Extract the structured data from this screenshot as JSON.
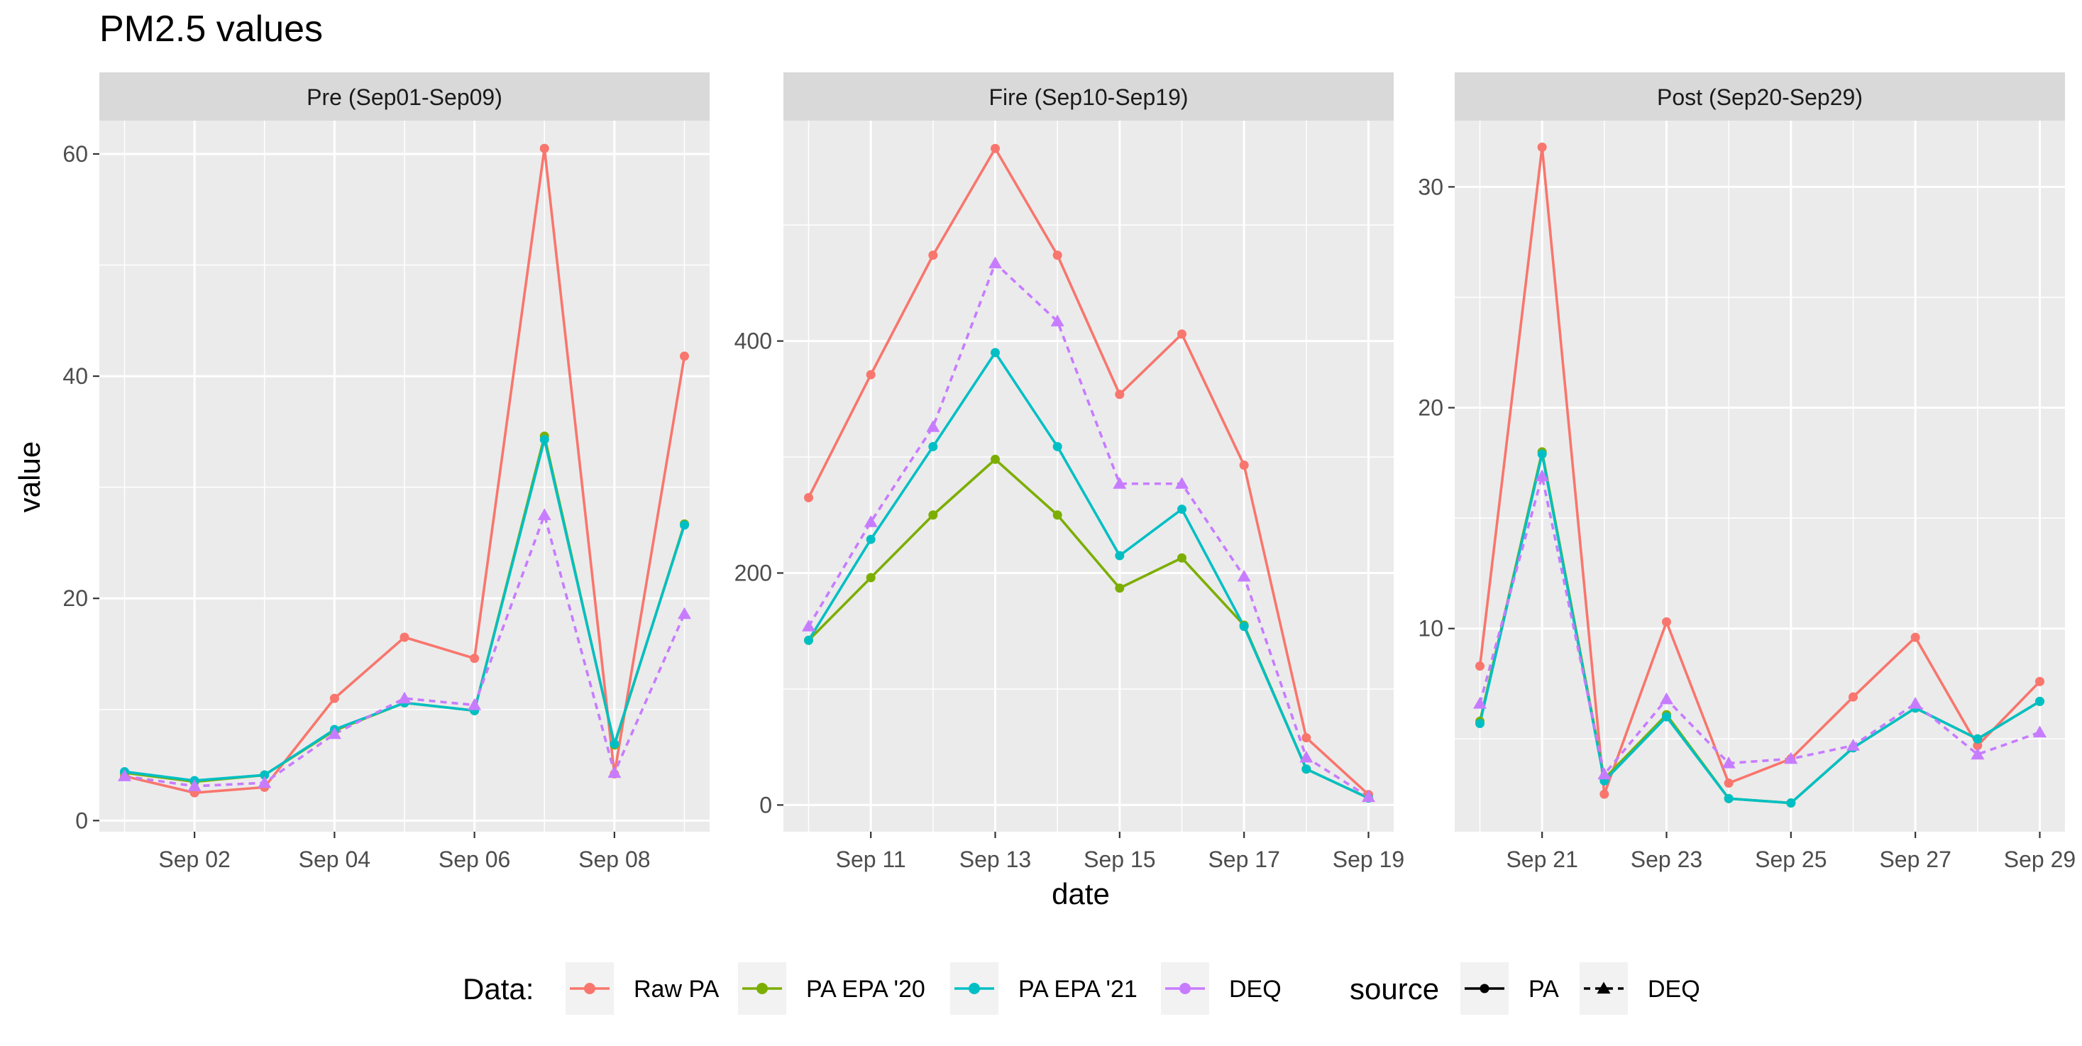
{
  "chart_data": {
    "type": "line",
    "title": "PM2.5 values",
    "xlabel": "date",
    "ylabel": "value",
    "grid": true,
    "legend_position": "bottom",
    "legend": {
      "data_title": "Data:",
      "source_title": "source",
      "data_entries": [
        {
          "label": "Raw PA",
          "color": "#F8766D"
        },
        {
          "label": "PA EPA '20",
          "color": "#7CAE00"
        },
        {
          "label": "PA EPA '21",
          "color": "#00BFC4"
        },
        {
          "label": "DEQ",
          "color": "#C77CFF"
        }
      ],
      "source_entries": [
        {
          "label": "PA",
          "linetype": "solid",
          "shape": "circle"
        },
        {
          "label": "DEQ",
          "linetype": "dashed",
          "shape": "triangle"
        }
      ]
    },
    "panels": [
      {
        "strip": "Pre (Sep01-Sep09)",
        "x_dates": [
          "2020-09-01",
          "2020-09-02",
          "2020-09-03",
          "2020-09-04",
          "2020-09-05",
          "2020-09-06",
          "2020-09-07",
          "2020-09-08",
          "2020-09-09"
        ],
        "x_ticks": [
          "Sep 02",
          "Sep 04",
          "Sep 06",
          "Sep 08"
        ],
        "y_ticks": [
          "0",
          "20",
          "40",
          "60"
        ],
        "ylim": [
          -1,
          63
        ],
        "series": [
          {
            "name": "Raw PA",
            "source": "PA",
            "color": "#F8766D",
            "values": [
              4.0,
              2.5,
              3.0,
              11.0,
              16.5,
              14.6,
              60.5,
              4.2,
              41.8
            ]
          },
          {
            "name": "PA EPA '20",
            "source": "PA",
            "color": "#7CAE00",
            "values": [
              4.3,
              3.5,
              4.1,
              8.1,
              10.6,
              9.9,
              34.6,
              6.8,
              26.7
            ]
          },
          {
            "name": "PA EPA '21",
            "source": "PA",
            "color": "#00BFC4",
            "values": [
              4.4,
              3.6,
              4.1,
              8.2,
              10.6,
              9.9,
              34.3,
              6.9,
              26.6
            ]
          },
          {
            "name": "DEQ",
            "source": "DEQ",
            "color": "#C77CFF",
            "values": [
              4.0,
              3.1,
              3.4,
              7.8,
              11.0,
              10.4,
              27.5,
              4.3,
              18.6
            ]
          }
        ]
      },
      {
        "strip": "Fire (Sep10-Sep19)",
        "x_dates": [
          "2020-09-10",
          "2020-09-11",
          "2020-09-12",
          "2020-09-13",
          "2020-09-14",
          "2020-09-15",
          "2020-09-16",
          "2020-09-17",
          "2020-09-18",
          "2020-09-19"
        ],
        "x_ticks": [
          "Sep 11",
          "Sep 13",
          "Sep 15",
          "Sep 17",
          "Sep 19"
        ],
        "y_ticks": [
          "0",
          "200",
          "400"
        ],
        "ylim": [
          -23,
          590
        ],
        "series": [
          {
            "name": "Raw PA",
            "source": "PA",
            "color": "#F8766D",
            "values": [
              265,
              371,
              474,
              566,
              474,
              354,
              406,
              293,
              58,
              9
            ]
          },
          {
            "name": "PA EPA '20",
            "source": "PA",
            "color": "#7CAE00",
            "values": [
              142,
              196,
              250,
              298,
              250,
              187,
              213,
              155,
              31,
              6
            ]
          },
          {
            "name": "PA EPA '21",
            "source": "PA",
            "color": "#00BFC4",
            "values": [
              142,
              229,
              309,
              390,
              309,
              215,
              255,
              154,
              31,
              6
            ]
          },
          {
            "name": "DEQ",
            "source": "DEQ",
            "color": "#C77CFF",
            "values": [
              154,
              244,
              326,
              467,
              417,
              277,
              277,
              197,
              41,
              7
            ]
          }
        ]
      },
      {
        "strip": "Post (Sep20-Sep29)",
        "x_dates": [
          "2020-09-20",
          "2020-09-21",
          "2020-09-22",
          "2020-09-23",
          "2020-09-24",
          "2020-09-25",
          "2020-09-26",
          "2020-09-27",
          "2020-09-28",
          "2020-09-29"
        ],
        "x_ticks": [
          "Sep 21",
          "Sep 23",
          "Sep 25",
          "Sep 27",
          "Sep 29"
        ],
        "y_ticks": [
          "10",
          "20",
          "30"
        ],
        "ylim": [
          0.8,
          33.0
        ],
        "series": [
          {
            "name": "Raw PA",
            "source": "PA",
            "color": "#F8766D",
            "values": [
              8.3,
              31.8,
              2.5,
              10.3,
              3.0,
              4.1,
              6.9,
              9.6,
              4.7,
              7.6
            ]
          },
          {
            "name": "PA EPA '20",
            "source": "PA",
            "color": "#7CAE00",
            "values": [
              5.8,
              18.0,
              3.2,
              6.1,
              2.3,
              2.1,
              4.6,
              6.4,
              5.0,
              6.7
            ]
          },
          {
            "name": "PA EPA '21",
            "source": "PA",
            "color": "#00BFC4",
            "values": [
              5.7,
              17.9,
              3.1,
              6.0,
              2.3,
              2.1,
              4.6,
              6.4,
              5.0,
              6.7
            ]
          },
          {
            "name": "DEQ",
            "source": "DEQ",
            "color": "#C77CFF",
            "values": [
              6.6,
              16.9,
              3.4,
              6.8,
              3.9,
              4.1,
              4.7,
              6.6,
              4.3,
              5.3
            ]
          }
        ]
      }
    ]
  }
}
